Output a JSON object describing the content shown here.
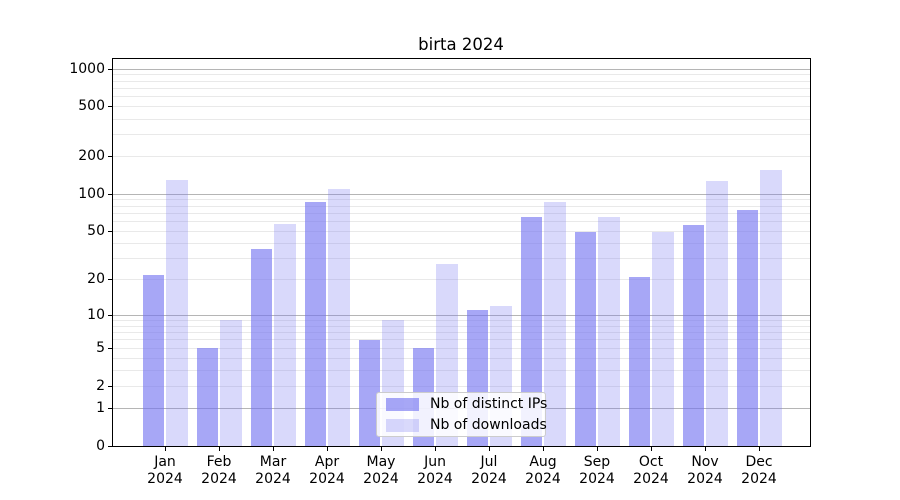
{
  "chart_data": {
    "type": "bar",
    "title": "birta 2024",
    "xlabel": "",
    "ylabel": "",
    "categories": [
      "Jan 2024",
      "Feb 2024",
      "Mar 2024",
      "Apr 2024",
      "May 2024",
      "Jun 2024",
      "Jul 2024",
      "Aug 2024",
      "Sep 2024",
      "Oct 2024",
      "Nov 2024",
      "Dec 2024"
    ],
    "series": [
      {
        "name": "Nb of distinct IPs",
        "color": "rgba(113,113,240,0.62)",
        "values": [
          22,
          5,
          36,
          87,
          6,
          5,
          11,
          65,
          50,
          21,
          56,
          75
        ]
      },
      {
        "name": "Nb of downloads",
        "color": "rgba(113,113,240,0.27)",
        "values": [
          130,
          9,
          58,
          110,
          9,
          27,
          12,
          86,
          65,
          50,
          128,
          157
        ]
      }
    ],
    "y_axis": {
      "scale": "log1p",
      "tick_values": [
        0,
        1,
        2,
        5,
        10,
        20,
        50,
        100,
        200,
        500,
        1000
      ],
      "major_gridlines": [
        1,
        10,
        100,
        1000
      ],
      "ylim": [
        0,
        1200
      ]
    },
    "legend": {
      "position": "lower center"
    },
    "grid": true
  },
  "colors": {
    "major_grid": "#b5b5b5",
    "minor_grid": "#e9e9e9",
    "spine": "#000000",
    "text": "#000000"
  }
}
